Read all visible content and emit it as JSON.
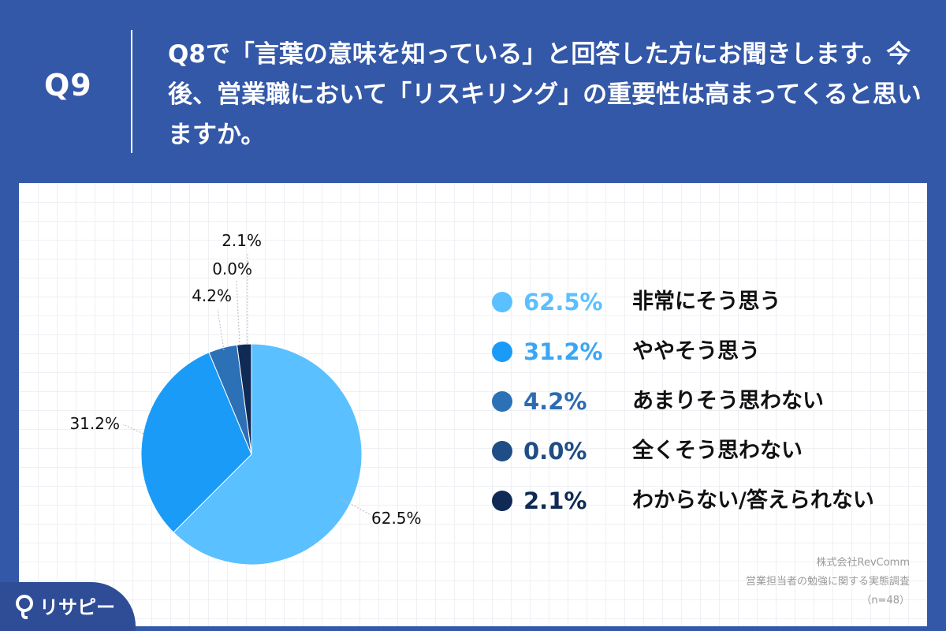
{
  "header": {
    "q_label": "Q9",
    "question": "Q8で「言葉の意味を知っている」と回答した方にお聞きします。今後、営業職において「リスキリング」の重要性は高まってくると思いますか。"
  },
  "chart_data": {
    "type": "pie",
    "categories": [
      "非常にそう思う",
      "ややそう思う",
      "あまりそう思わない",
      "全くそう思わない",
      "わからない/答えられない"
    ],
    "values": [
      62.5,
      31.2,
      4.2,
      0.0,
      2.1
    ],
    "value_labels": [
      "62.5%",
      "31.2%",
      "4.2%",
      "0.0%",
      "2.1%"
    ],
    "colors": [
      "#5bc0ff",
      "#1a9bf7",
      "#2c70b6",
      "#1f4d85",
      "#102a55"
    ],
    "legend_text_colors": [
      "#5bc0ff",
      "#3aa6f5",
      "#2c6bb0",
      "#1f4d85",
      "#102a55"
    ],
    "legend": "right"
  },
  "source": {
    "company": "株式会社RevComm",
    "survey": "営業担当者の勉強に関する実態調査",
    "n": "（n=48）"
  },
  "logo": {
    "text": "リサピー"
  }
}
